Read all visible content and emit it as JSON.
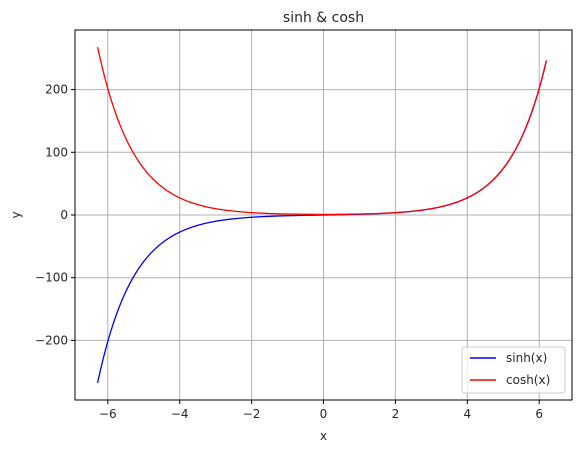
{
  "chart_data": {
    "type": "line",
    "title": "sinh & cosh",
    "xlabel": "x",
    "ylabel": "y",
    "xlim": [
      -6.912,
      6.912
    ],
    "ylim": [
      -295,
      295
    ],
    "xticks": [
      -6,
      -4,
      -2,
      0,
      2,
      4,
      6
    ],
    "xtick_labels": [
      "−6",
      "−4",
      "−2",
      "0",
      "2",
      "4",
      "6"
    ],
    "yticks": [
      -200,
      -100,
      0,
      100,
      200
    ],
    "ytick_labels": [
      "−200",
      "−100",
      "0",
      "100",
      "200"
    ],
    "grid": true,
    "legend_position": "lower-right",
    "x_range": [
      -6.283,
      6.2
    ],
    "series": [
      {
        "name": "sinh(x)",
        "color": "#0000ff",
        "x": [
          -6.283,
          -6.0,
          -5.75,
          -5.5,
          -5.25,
          -5.0,
          -4.75,
          -4.5,
          -4.25,
          -4.0,
          -3.75,
          -3.5,
          -3.25,
          -3.0,
          -2.75,
          -2.5,
          -2.25,
          -2.0,
          -1.75,
          -1.5,
          -1.25,
          -1.0,
          -0.75,
          -0.5,
          -0.25,
          0.0,
          0.25,
          0.5,
          0.75,
          1.0,
          1.25,
          1.5,
          1.75,
          2.0,
          2.25,
          2.5,
          2.75,
          3.0,
          3.25,
          3.5,
          3.75,
          4.0,
          4.25,
          4.5,
          4.75,
          5.0,
          5.25,
          5.5,
          5.75,
          6.0,
          6.2
        ],
        "y": [
          -267.74,
          -201.71,
          -157.09,
          -122.34,
          -95.28,
          -74.2,
          -57.79,
          -45.0,
          -35.04,
          -27.29,
          -21.25,
          -16.54,
          -12.88,
          -10.02,
          -7.78,
          -6.05,
          -4.69,
          -3.63,
          -2.79,
          -2.13,
          -1.6,
          -1.18,
          -0.82,
          -0.52,
          -0.25,
          0.0,
          0.25,
          0.52,
          0.82,
          1.18,
          1.6,
          2.13,
          2.79,
          3.63,
          4.69,
          6.05,
          7.78,
          10.02,
          12.88,
          16.54,
          21.25,
          27.29,
          35.04,
          45.0,
          57.79,
          74.2,
          95.28,
          122.34,
          157.09,
          201.71,
          246.37
        ]
      },
      {
        "name": "cosh(x)",
        "color": "#ff0000",
        "x": [
          -6.283,
          -6.0,
          -5.75,
          -5.5,
          -5.25,
          -5.0,
          -4.75,
          -4.5,
          -4.25,
          -4.0,
          -3.75,
          -3.5,
          -3.25,
          -3.0,
          -2.75,
          -2.5,
          -2.25,
          -2.0,
          -1.75,
          -1.5,
          -1.25,
          -1.0,
          -0.75,
          -0.5,
          -0.25,
          0.0,
          0.25,
          0.5,
          0.75,
          1.0,
          1.25,
          1.5,
          1.75,
          2.0,
          2.25,
          2.5,
          2.75,
          3.0,
          3.25,
          3.5,
          3.75,
          4.0,
          4.25,
          4.5,
          4.75,
          5.0,
          5.25,
          5.5,
          5.75,
          6.0,
          6.2
        ],
        "y": [
          267.75,
          201.72,
          157.09,
          122.35,
          95.28,
          74.21,
          57.8,
          45.01,
          35.06,
          27.31,
          21.27,
          16.57,
          12.92,
          10.07,
          7.85,
          6.13,
          4.8,
          3.76,
          2.96,
          2.35,
          1.89,
          1.54,
          1.29,
          1.13,
          1.03,
          1.0,
          1.03,
          1.13,
          1.29,
          1.54,
          1.89,
          2.35,
          2.96,
          3.76,
          4.8,
          6.13,
          7.85,
          10.07,
          12.92,
          16.57,
          21.27,
          27.31,
          35.06,
          45.01,
          57.8,
          74.21,
          95.28,
          122.35,
          157.09,
          201.72,
          246.38
        ]
      }
    ]
  }
}
